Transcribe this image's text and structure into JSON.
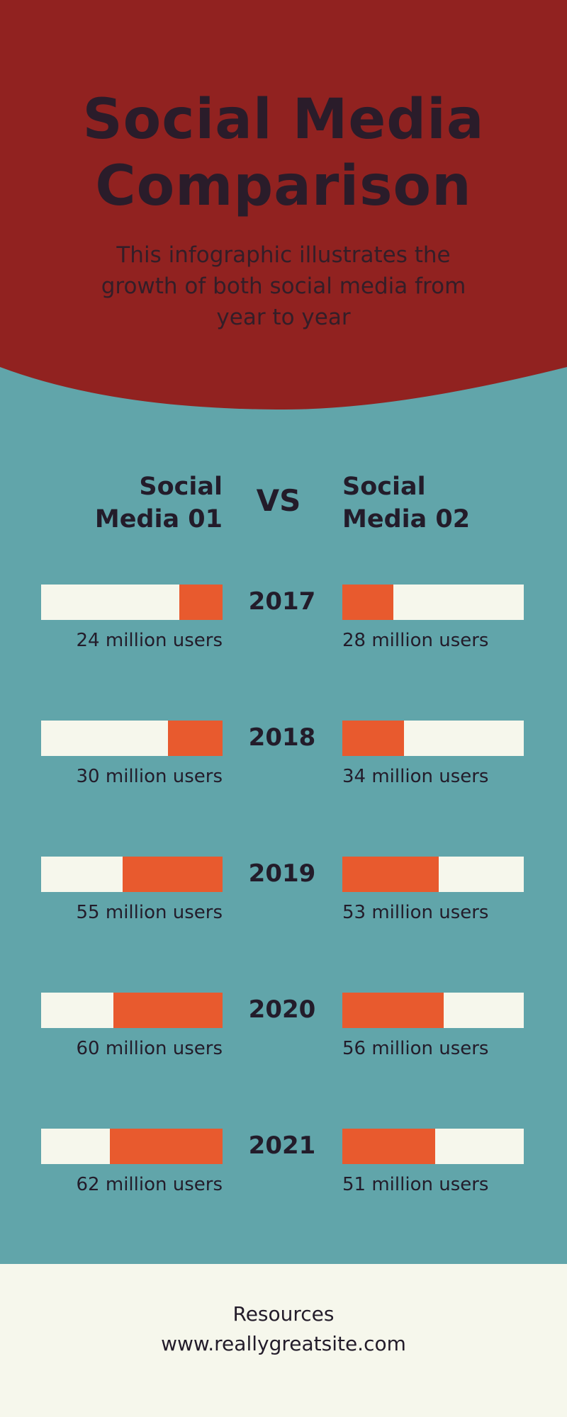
{
  "header": {
    "title_line1": "Social Media",
    "title_line2": "Comparison",
    "subtitle": "This infographic illustrates the growth of both social media from year to year"
  },
  "comparison": {
    "left_line1": "Social",
    "left_line2": "Media 01",
    "vs": "VS",
    "right_line1": "Social",
    "right_line2": "Media 02"
  },
  "chart_data": {
    "type": "bar",
    "title": "Social Media Comparison",
    "categories": [
      "2017",
      "2018",
      "2019",
      "2020",
      "2021"
    ],
    "unit_suffix": "million users",
    "series": [
      {
        "name": "Social Media 01",
        "values": [
          24,
          30,
          55,
          60,
          62
        ]
      },
      {
        "name": "Social Media 02",
        "values": [
          28,
          34,
          53,
          56,
          51
        ]
      }
    ],
    "labels": {
      "left": [
        "24 million users",
        "30 million users",
        "55 million users",
        "60 million users",
        "62 million users"
      ],
      "right": [
        "28 million users",
        "34 million users",
        "53 million users",
        "56 million users",
        "51 million users"
      ]
    },
    "xlim": [
      0,
      100
    ]
  },
  "footer": {
    "line1": "Resources",
    "line2": "www.reallygreatsite.com"
  },
  "colors": {
    "header_red": "#912220",
    "teal_background": "#61a5aa",
    "bar_track": "#f6f7ec",
    "bar_fill": "#e85a2e",
    "text_dark": "#231c2a"
  }
}
